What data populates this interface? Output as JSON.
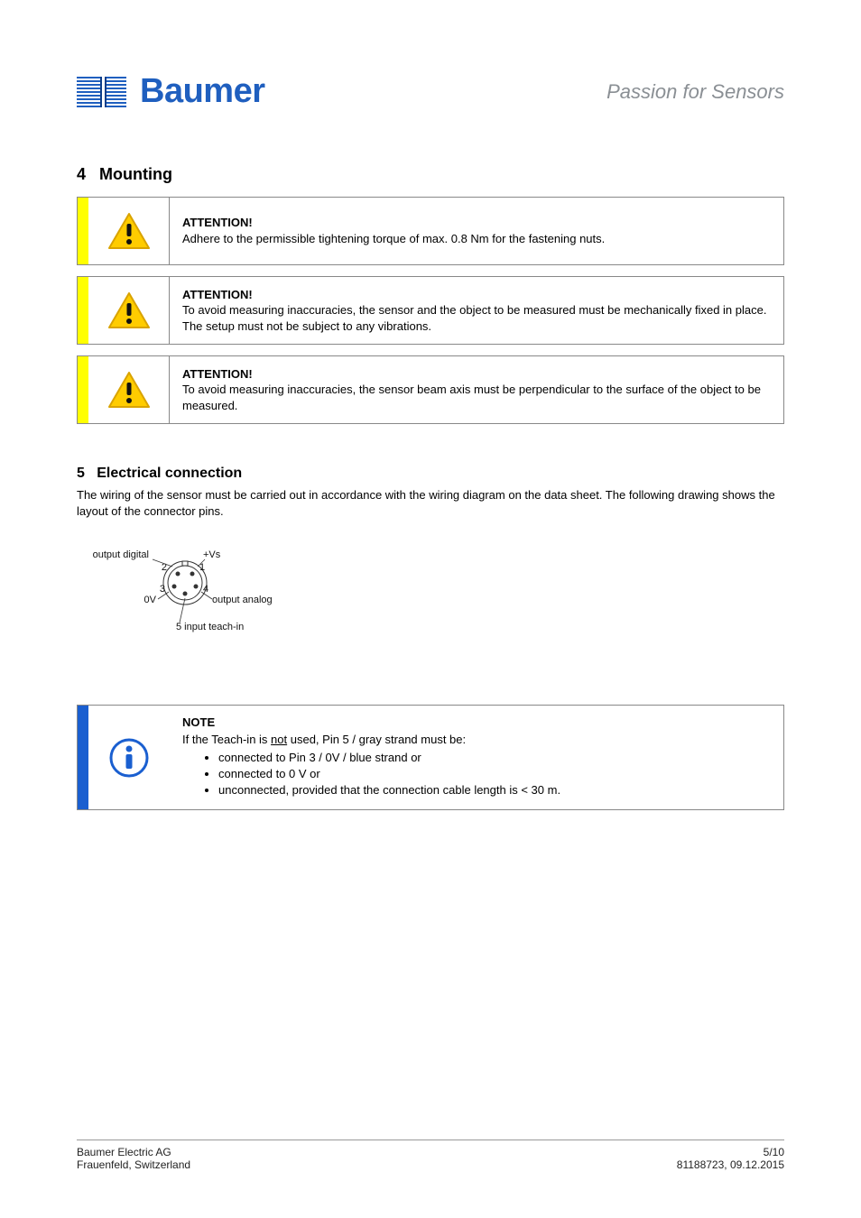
{
  "colors": {
    "brand_blue": "#1f5fbf",
    "tagline_grey": "#8a8f94",
    "warning_yellow": "#ffcc00",
    "warning_border": "#d9a300",
    "info_blue": "#1a5fd0",
    "callout_yellow_bar": "#ffff00",
    "callout_blue_bar": "#1a5fd0",
    "text": "#111111"
  },
  "header": {
    "brand": "Baumer",
    "tagline": "Passion for Sensors"
  },
  "sections": {
    "s4": {
      "number": "4",
      "title": "Mounting"
    },
    "s5": {
      "number": "5",
      "title": "Electrical connection",
      "body": "The wiring of the sensor must be carried out in accordance with the wiring diagram on the data sheet. The following drawing shows the layout of the connector pins."
    }
  },
  "warnings": [
    {
      "title": "ATTENTION!",
      "text": "Adhere to the permissible tightening torque of max. 0.8 Nm for the fastening nuts."
    },
    {
      "title": "ATTENTION!",
      "text": "To avoid measuring inaccuracies, the sensor and the object to be measured must be mechanically fixed in place. The setup must not be subject to any vibrations."
    },
    {
      "title": "ATTENTION!",
      "text": "To avoid measuring inaccuracies, the sensor beam axis must be perpendicular to the surface of the object to be measured."
    }
  ],
  "pin_diagram": {
    "labels": {
      "p1": "+Vs",
      "p2": "output digital",
      "p3": "0V",
      "p4": "output analog",
      "p5": "5 input teach-in",
      "n1": "1",
      "n2": "2",
      "n3": "3",
      "n4": "4"
    }
  },
  "note": {
    "title": "NOTE",
    "intro_1": "If the Teach-in is ",
    "intro_underlined": "not",
    "intro_2": " used, Pin 5 / gray strand must be:",
    "bullets": [
      "connected to Pin 3 / 0V / blue strand or",
      "connected to 0 V or",
      "unconnected, provided that the connection cable length is < 30 m."
    ]
  },
  "footer": {
    "company": "Baumer Electric AG",
    "address": "Frauenfeld, Switzerland",
    "page": "5/10",
    "doc_id": "81188723",
    "date": "09.12.2015"
  }
}
